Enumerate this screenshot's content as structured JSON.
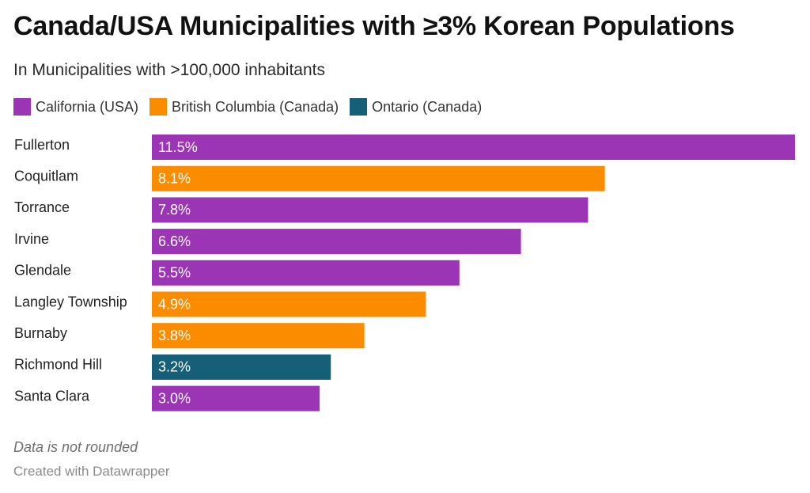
{
  "title": "Canada/USA Municipalities with ≥3% Korean Populations",
  "subtitle": "In Municipalities with >100,000 inhabitants",
  "legend": [
    {
      "label": "California (USA)",
      "color": "#9b35b6"
    },
    {
      "label": "British Columbia (Canada)",
      "color": "#fb8c00"
    },
    {
      "label": "Ontario (Canada)",
      "color": "#155f79"
    }
  ],
  "footnote": "Data is not rounded",
  "credit": "Created with Datawrapper",
  "chart_data": {
    "type": "bar",
    "orientation": "horizontal",
    "categories": [
      "Fullerton",
      "Coquitlam",
      "Torrance",
      "Irvine",
      "Glendale",
      "Langley Township",
      "Burnaby",
      "Richmond Hill",
      "Santa Clara"
    ],
    "values": [
      11.5,
      8.1,
      7.8,
      6.6,
      5.5,
      4.9,
      3.8,
      3.2,
      3.0
    ],
    "value_labels": [
      "11.5%",
      "8.1%",
      "7.8%",
      "6.6%",
      "5.5%",
      "4.9%",
      "3.8%",
      "3.2%",
      "3.0%"
    ],
    "groups": [
      "California (USA)",
      "British Columbia (Canada)",
      "California (USA)",
      "California (USA)",
      "California (USA)",
      "British Columbia (Canada)",
      "British Columbia (Canada)",
      "Ontario (Canada)",
      "California (USA)"
    ],
    "xlim": [
      0,
      11.5
    ],
    "unit": "%",
    "grid": false,
    "legend_position": "top-left"
  }
}
